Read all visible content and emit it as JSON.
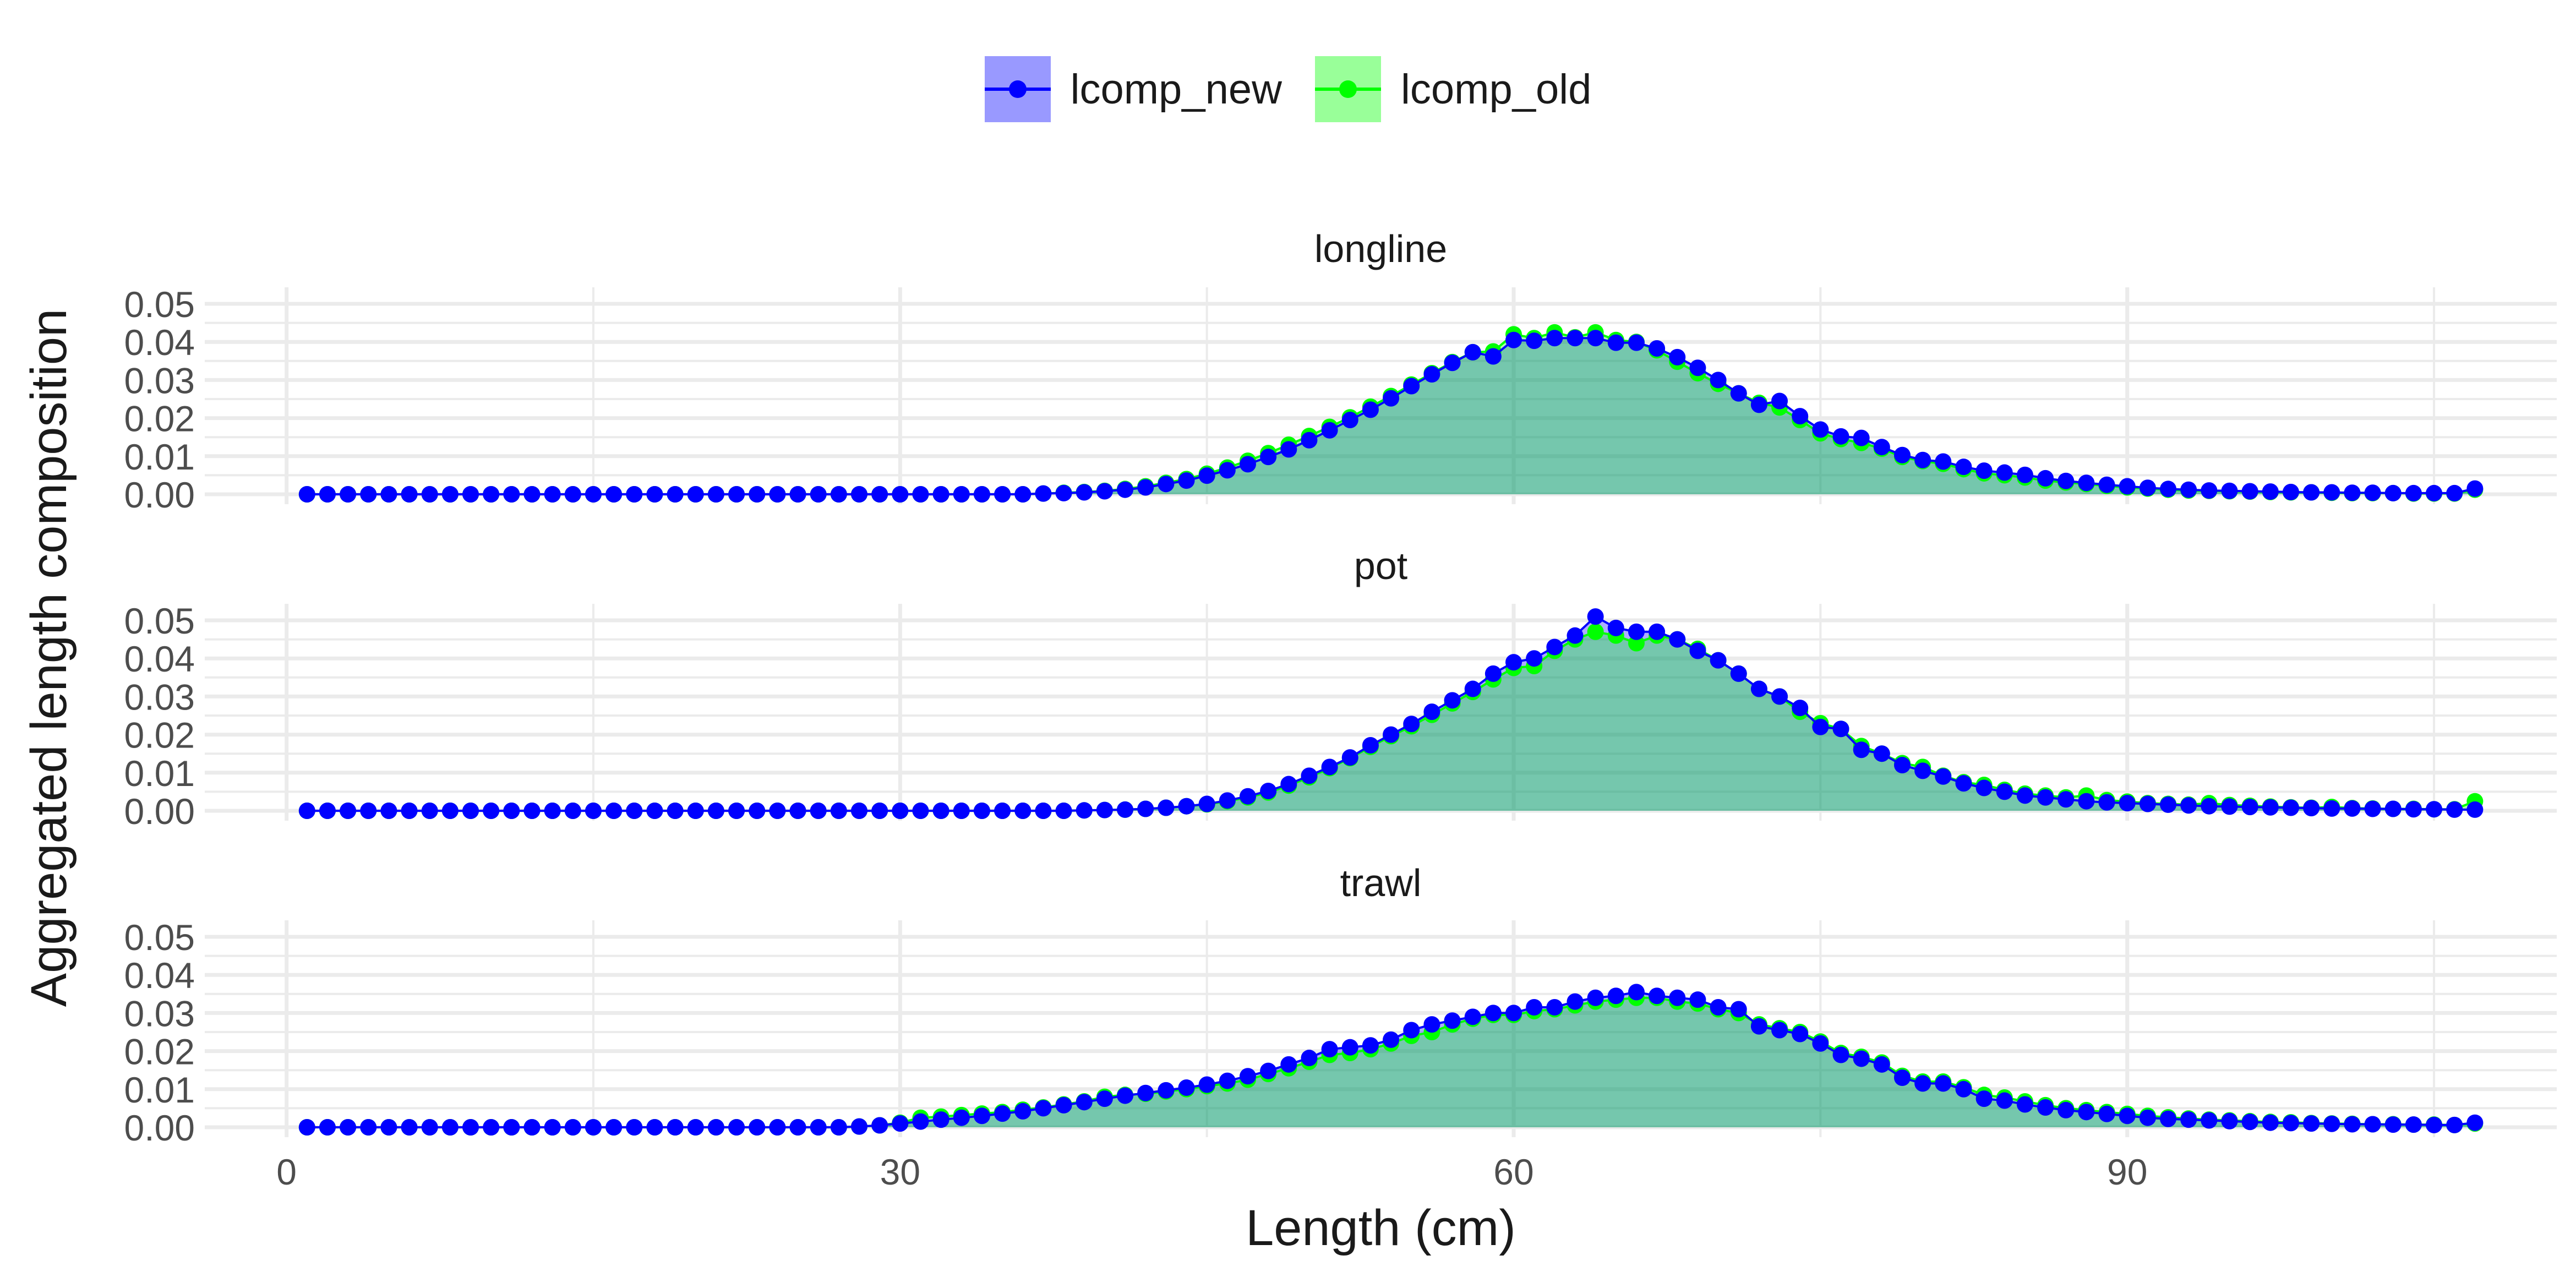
{
  "colors": {
    "new": "#0000ff",
    "old": "#00ff00",
    "new_fill": "#9999ff",
    "old_fill": "#99ff99",
    "area": "#5fc59c",
    "grid": "#ebebeb",
    "tick_text": "#4d4d4d",
    "text": "#1a1a1a"
  },
  "legend": [
    {
      "label": "lcomp_new",
      "color": "#0000ff",
      "fill": "#9999ff"
    },
    {
      "label": "lcomp_old",
      "color": "#00ff00",
      "fill": "#99ff99"
    }
  ],
  "chart_data": {
    "type": "line",
    "xlabel": "Length (cm)",
    "ylabel": "Aggregated length composition",
    "xlim": [
      -4,
      111
    ],
    "ylim": [
      0,
      0.05
    ],
    "x_ticks": [
      0,
      30,
      60,
      90
    ],
    "x_tick_labels": [
      "0",
      "30",
      "60",
      "90"
    ],
    "y_ticks": [
      0,
      0.01,
      0.02,
      0.03,
      0.04,
      0.05
    ],
    "y_tick_labels": [
      "0.00",
      "0.01",
      "0.02",
      "0.03",
      "0.04",
      "0.05"
    ],
    "grid": true,
    "legend_position": "top",
    "x": [
      1,
      2,
      3,
      4,
      5,
      6,
      7,
      8,
      9,
      10,
      11,
      12,
      13,
      14,
      15,
      16,
      17,
      18,
      19,
      20,
      21,
      22,
      23,
      24,
      25,
      26,
      27,
      28,
      29,
      30,
      31,
      32,
      33,
      34,
      35,
      36,
      37,
      38,
      39,
      40,
      41,
      42,
      43,
      44,
      45,
      46,
      47,
      48,
      49,
      50,
      51,
      52,
      53,
      54,
      55,
      56,
      57,
      58,
      59,
      60,
      61,
      62,
      63,
      64,
      65,
      66,
      67,
      68,
      69,
      70,
      71,
      72,
      73,
      74,
      75,
      76,
      77,
      78,
      79,
      80,
      81,
      82,
      83,
      84,
      85,
      86,
      87,
      88,
      89,
      90,
      91,
      92,
      93,
      94,
      95,
      96,
      97,
      98,
      99,
      100,
      101,
      102,
      103,
      104,
      105,
      106,
      107
    ],
    "panels": [
      {
        "title": "longline",
        "series": [
          {
            "name": "lcomp_new",
            "values": [
              0,
              0,
              0,
              0,
              0,
              0,
              0,
              0,
              0,
              0,
              0,
              0,
              0,
              0,
              0,
              0,
              0,
              0,
              0,
              0,
              0,
              0,
              0,
              0,
              0,
              0,
              0,
              0,
              0,
              0,
              0,
              0,
              0,
              0,
              0,
              0,
              0.0002,
              0.0003,
              0.0005,
              0.0008,
              0.0012,
              0.0018,
              0.0027,
              0.0036,
              0.0049,
              0.0063,
              0.0079,
              0.0098,
              0.0118,
              0.0142,
              0.0168,
              0.0195,
              0.0222,
              0.0252,
              0.0284,
              0.0315,
              0.0345,
              0.0373,
              0.0362,
              0.0405,
              0.0403,
              0.041,
              0.041,
              0.041,
              0.0398,
              0.0398,
              0.0383,
              0.036,
              0.0332,
              0.03,
              0.0265,
              0.0235,
              0.0245,
              0.0205,
              0.017,
              0.0152,
              0.0148,
              0.0124,
              0.0103,
              0.009,
              0.0086,
              0.0072,
              0.0062,
              0.0057,
              0.0051,
              0.0042,
              0.0035,
              0.003,
              0.0025,
              0.0021,
              0.0017,
              0.0014,
              0.0012,
              0.001,
              0.0009,
              0.0008,
              0.0007,
              0.0006,
              0.0005,
              0.0005,
              0.0004,
              0.0004,
              0.0003,
              0.0003,
              0.0003,
              0.0003,
              0.0015
            ]
          },
          {
            "name": "lcomp_old",
            "values": [
              0,
              0,
              0,
              0,
              0,
              0,
              0,
              0,
              0,
              0,
              0,
              0,
              0,
              0,
              0,
              0,
              0,
              0,
              0,
              0,
              0,
              0,
              0,
              0,
              0,
              0,
              0,
              0,
              0,
              0,
              0,
              0,
              0,
              0,
              0,
              0,
              0.0002,
              0.0004,
              0.0006,
              0.0009,
              0.0014,
              0.0021,
              0.003,
              0.004,
              0.0054,
              0.007,
              0.0088,
              0.0108,
              0.013,
              0.0153,
              0.0177,
              0.0202,
              0.023,
              0.0258,
              0.0288,
              0.0318,
              0.0347,
              0.0373,
              0.0375,
              0.042,
              0.041,
              0.0425,
              0.0412,
              0.0425,
              0.0405,
              0.04,
              0.0378,
              0.0348,
              0.0318,
              0.029,
              0.0265,
              0.024,
              0.0228,
              0.0195,
              0.016,
              0.0145,
              0.0135,
              0.012,
              0.0098,
              0.0087,
              0.008,
              0.0066,
              0.0055,
              0.005,
              0.0044,
              0.0036,
              0.0031,
              0.0027,
              0.0022,
              0.0018,
              0.0015,
              0.0012,
              0.001,
              0.0009,
              0.0008,
              0.0007,
              0.0006,
              0.0005,
              0.0005,
              0.0004,
              0.0003,
              0.0003,
              0.0003,
              0.0002,
              0.0002,
              0.0002,
              0.0012
            ]
          }
        ]
      },
      {
        "title": "pot",
        "series": [
          {
            "name": "lcomp_new",
            "values": [
              0,
              0,
              0,
              0,
              0,
              0,
              0,
              0,
              0,
              0,
              0,
              0,
              0,
              0,
              0,
              0,
              0,
              0,
              0,
              0,
              0,
              0,
              0,
              0,
              0,
              0,
              0,
              0,
              0,
              0,
              0,
              0,
              0,
              0,
              0,
              0,
              0,
              0,
              0.0001,
              0.0002,
              0.0003,
              0.0005,
              0.0008,
              0.0012,
              0.0018,
              0.0027,
              0.0038,
              0.0052,
              0.007,
              0.0092,
              0.0115,
              0.014,
              0.0172,
              0.02,
              0.0228,
              0.026,
              0.029,
              0.032,
              0.036,
              0.039,
              0.04,
              0.043,
              0.046,
              0.051,
              0.048,
              0.047,
              0.047,
              0.045,
              0.042,
              0.0395,
              0.036,
              0.032,
              0.03,
              0.027,
              0.022,
              0.0215,
              0.016,
              0.015,
              0.012,
              0.0105,
              0.009,
              0.0072,
              0.006,
              0.005,
              0.004,
              0.0035,
              0.003,
              0.0025,
              0.0022,
              0.002,
              0.0018,
              0.0016,
              0.0014,
              0.0012,
              0.0011,
              0.001,
              0.0009,
              0.0008,
              0.0007,
              0.0006,
              0.0006,
              0.0005,
              0.0005,
              0.0004,
              0.0004,
              0.0003,
              0.0003
            ]
          },
          {
            "name": "lcomp_old",
            "values": [
              0,
              0,
              0,
              0,
              0,
              0,
              0,
              0,
              0,
              0,
              0,
              0,
              0,
              0,
              0,
              0,
              0,
              0,
              0,
              0,
              0,
              0,
              0,
              0,
              0,
              0,
              0,
              0,
              0,
              0,
              0,
              0,
              0,
              0,
              0,
              0,
              0,
              0,
              0.0001,
              0.0002,
              0.0003,
              0.0005,
              0.0008,
              0.0012,
              0.0017,
              0.0025,
              0.0035,
              0.0048,
              0.0066,
              0.0088,
              0.0112,
              0.0138,
              0.0168,
              0.0196,
              0.0222,
              0.0252,
              0.0282,
              0.0312,
              0.0345,
              0.0375,
              0.038,
              0.042,
              0.045,
              0.047,
              0.046,
              0.044,
              0.046,
              0.045,
              0.0425,
              0.0395,
              0.036,
              0.032,
              0.03,
              0.026,
              0.023,
              0.0215,
              0.017,
              0.015,
              0.0125,
              0.0115,
              0.0092,
              0.0075,
              0.0068,
              0.0055,
              0.0045,
              0.004,
              0.0035,
              0.004,
              0.0028,
              0.0024,
              0.002,
              0.0018,
              0.0016,
              0.002,
              0.0015,
              0.0013,
              0.0011,
              0.0009,
              0.0008,
              0.001,
              0.0007,
              0.0006,
              0.0005,
              0.0005,
              0.0004,
              0.0004,
              0.0025
            ]
          }
        ]
      },
      {
        "title": "trawl",
        "series": [
          {
            "name": "lcomp_new",
            "values": [
              0,
              0,
              0,
              0,
              0,
              0,
              0,
              0,
              0,
              0,
              0,
              0,
              0,
              0,
              0,
              0,
              0,
              0,
              0,
              0,
              0,
              0,
              0,
              0,
              0,
              0,
              0,
              0.0002,
              0.0005,
              0.001,
              0.0015,
              0.002,
              0.0025,
              0.003,
              0.0036,
              0.0042,
              0.005,
              0.0058,
              0.0066,
              0.0075,
              0.0083,
              0.009,
              0.0097,
              0.0104,
              0.0112,
              0.0122,
              0.0134,
              0.0148,
              0.0165,
              0.0182,
              0.0205,
              0.021,
              0.0215,
              0.023,
              0.0255,
              0.027,
              0.028,
              0.029,
              0.03,
              0.03,
              0.0315,
              0.0315,
              0.033,
              0.034,
              0.0345,
              0.0355,
              0.0345,
              0.034,
              0.0335,
              0.0315,
              0.031,
              0.0265,
              0.0255,
              0.0245,
              0.022,
              0.019,
              0.018,
              0.0165,
              0.013,
              0.0115,
              0.0115,
              0.01,
              0.0075,
              0.007,
              0.006,
              0.0052,
              0.0045,
              0.004,
              0.0035,
              0.003,
              0.0025,
              0.0022,
              0.002,
              0.0018,
              0.0016,
              0.0014,
              0.0012,
              0.0011,
              0.001,
              0.0009,
              0.0008,
              0.0008,
              0.0007,
              0.0007,
              0.0006,
              0.0006,
              0.0012
            ]
          },
          {
            "name": "lcomp_old",
            "values": [
              0,
              0,
              0,
              0,
              0,
              0,
              0,
              0,
              0,
              0,
              0,
              0,
              0,
              0,
              0,
              0,
              0,
              0,
              0,
              0,
              0,
              0,
              0,
              0,
              0,
              0,
              0,
              0.0002,
              0.0005,
              0.0012,
              0.0025,
              0.0028,
              0.0032,
              0.0036,
              0.004,
              0.0046,
              0.0052,
              0.006,
              0.0068,
              0.008,
              0.0085,
              0.0088,
              0.0094,
              0.01,
              0.0108,
              0.0115,
              0.0125,
              0.014,
              0.0155,
              0.0172,
              0.019,
              0.0195,
              0.0205,
              0.022,
              0.024,
              0.025,
              0.027,
              0.0285,
              0.0295,
              0.0295,
              0.0305,
              0.031,
              0.032,
              0.033,
              0.0335,
              0.034,
              0.034,
              0.033,
              0.0325,
              0.031,
              0.03,
              0.027,
              0.026,
              0.025,
              0.0225,
              0.0195,
              0.0185,
              0.017,
              0.0135,
              0.012,
              0.012,
              0.0105,
              0.0085,
              0.0078,
              0.0068,
              0.0058,
              0.005,
              0.0045,
              0.004,
              0.0035,
              0.003,
              0.0026,
              0.0023,
              0.002,
              0.0018,
              0.0016,
              0.0014,
              0.0013,
              0.0011,
              0.001,
              0.0009,
              0.0008,
              0.0008,
              0.0007,
              0.0007,
              0.0006,
              0.001
            ]
          }
        ]
      }
    ]
  }
}
